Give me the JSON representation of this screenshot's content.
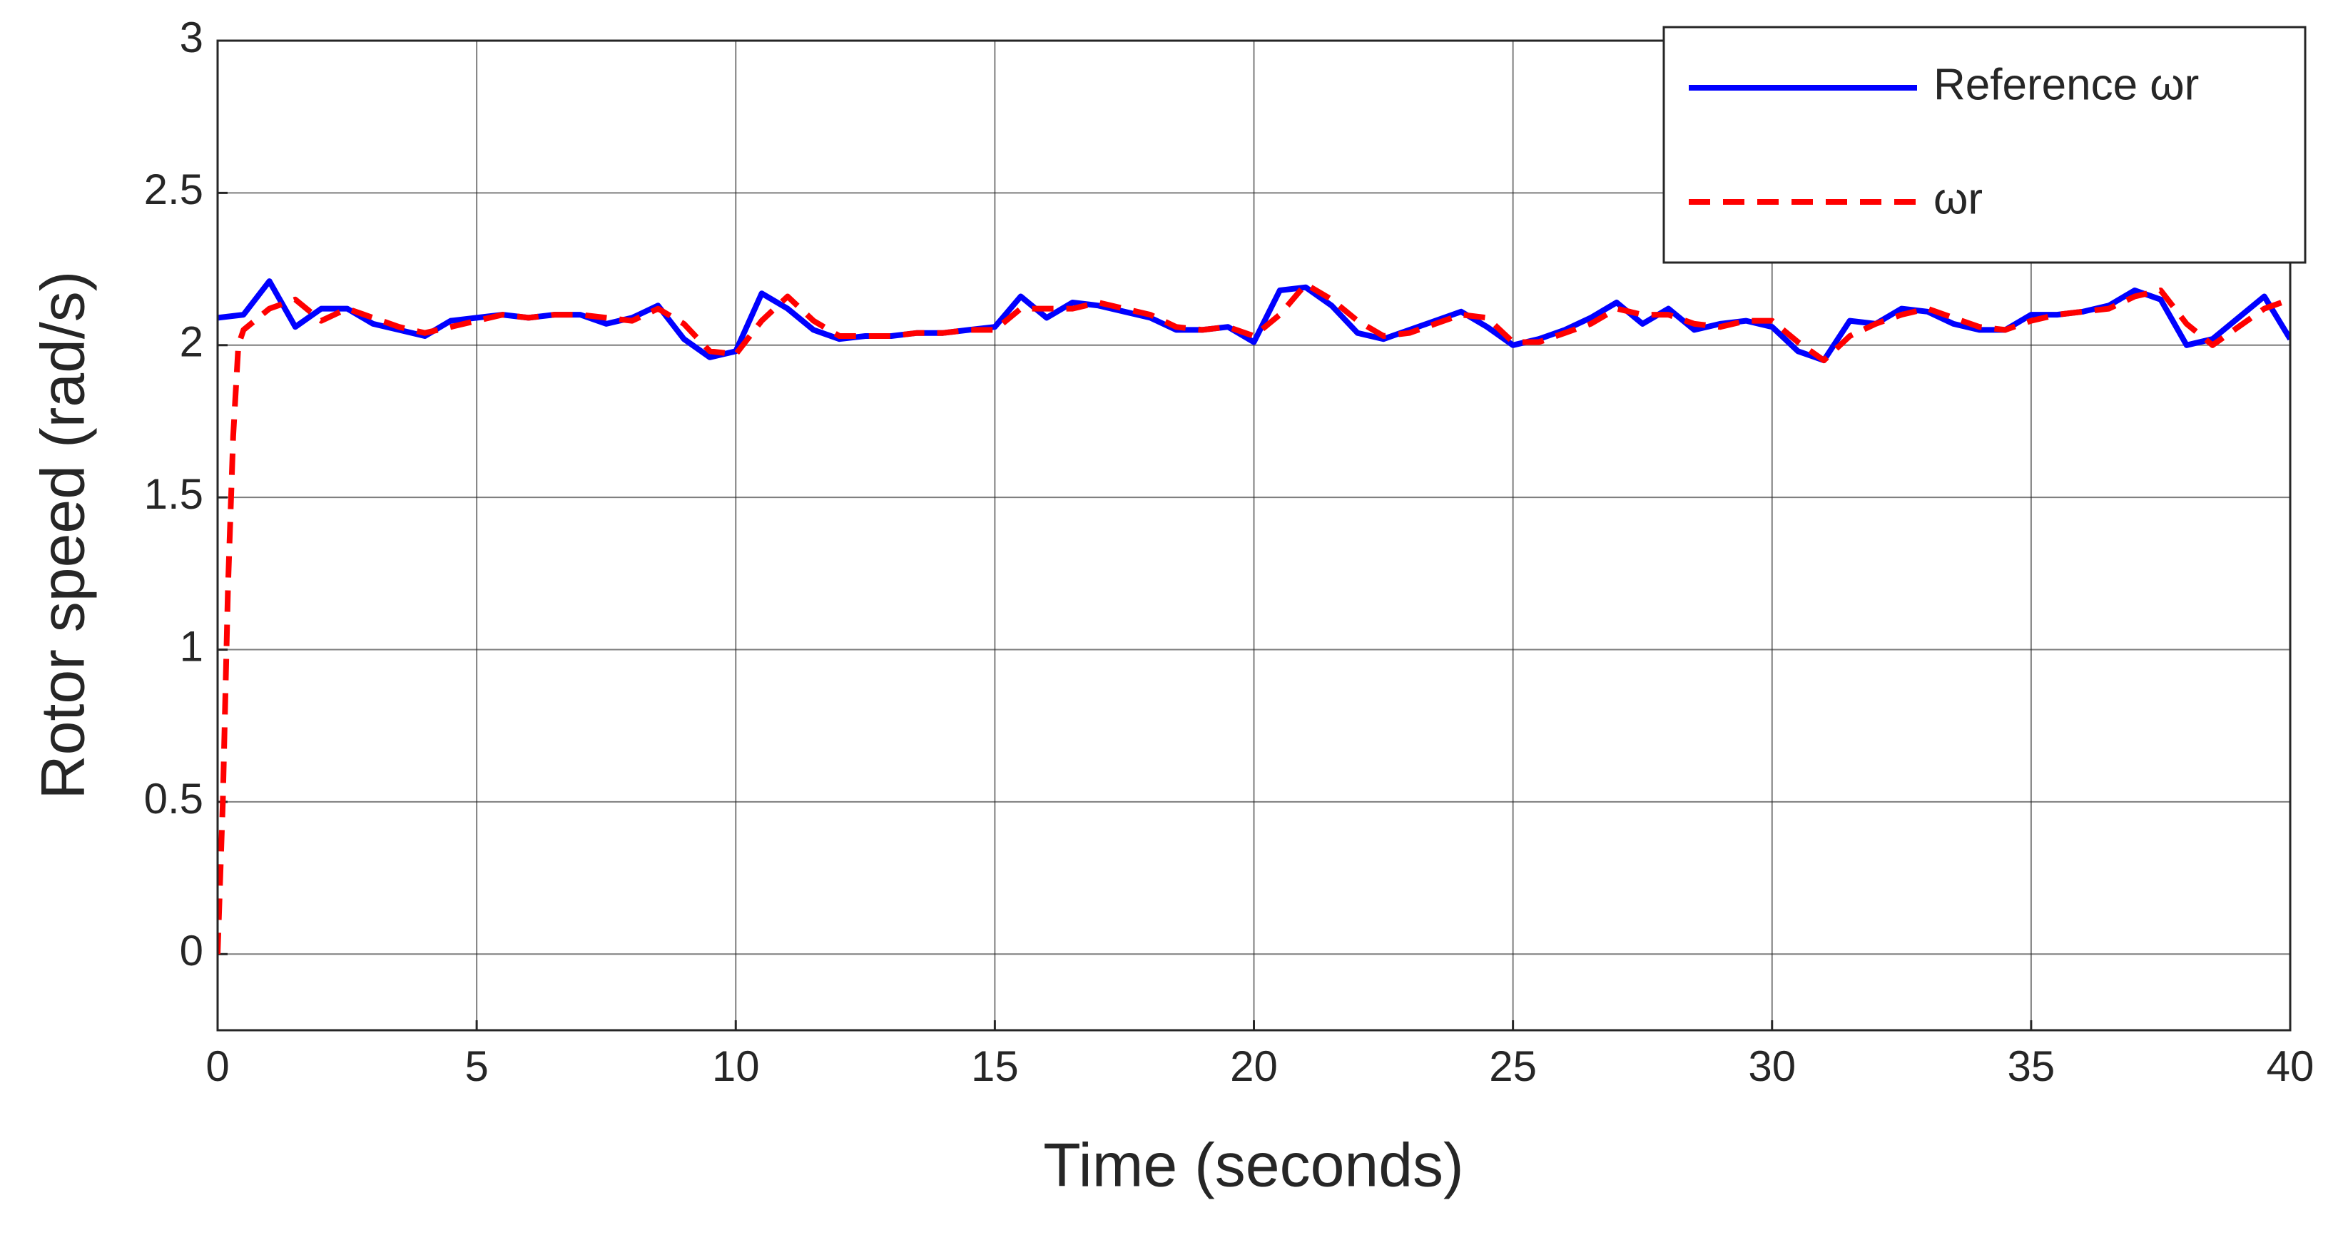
{
  "chart_data": {
    "type": "line",
    "xlabel": "Time (seconds)",
    "ylabel": "Rotor speed (rad/s)",
    "xlim": [
      0,
      40
    ],
    "ylim": [
      -0.25,
      3
    ],
    "xticks": [
      0,
      5,
      10,
      15,
      20,
      25,
      30,
      35,
      40
    ],
    "yticks": [
      0,
      0.5,
      1,
      1.5,
      2,
      2.5,
      3
    ],
    "grid": true,
    "legend": "upper right",
    "series": [
      {
        "name": "Reference ωr",
        "color": "#0000ff",
        "style": "solid",
        "x": [
          0,
          0.5,
          1,
          1.5,
          2,
          2.5,
          3,
          3.5,
          4,
          4.5,
          5,
          5.5,
          6,
          6.5,
          7,
          7.5,
          8,
          8.5,
          9,
          9.5,
          10,
          10.5,
          11,
          11.5,
          12,
          12.5,
          13,
          13.5,
          14,
          14.5,
          15,
          15.5,
          16,
          16.5,
          17,
          17.5,
          18,
          18.5,
          19,
          19.5,
          20,
          20.5,
          21,
          21.5,
          22,
          22.5,
          23,
          23.5,
          24,
          24.5,
          25,
          25.5,
          26,
          26.5,
          27,
          27.5,
          28,
          28.5,
          29,
          29.5,
          30,
          30.5,
          31,
          31.5,
          32,
          32.5,
          33,
          33.5,
          34,
          34.5,
          35,
          35.5,
          36,
          36.5,
          37,
          37.5,
          38,
          38.5,
          39,
          39.5,
          40
        ],
        "values": [
          2.09,
          2.1,
          2.21,
          2.06,
          2.12,
          2.12,
          2.07,
          2.05,
          2.03,
          2.08,
          2.09,
          2.1,
          2.09,
          2.1,
          2.1,
          2.07,
          2.09,
          2.13,
          2.02,
          1.96,
          1.98,
          2.17,
          2.12,
          2.05,
          2.02,
          2.03,
          2.03,
          2.04,
          2.04,
          2.05,
          2.06,
          2.16,
          2.09,
          2.14,
          2.13,
          2.11,
          2.09,
          2.05,
          2.05,
          2.06,
          2.01,
          2.18,
          2.19,
          2.13,
          2.04,
          2.02,
          2.05,
          2.08,
          2.11,
          2.06,
          2.0,
          2.02,
          2.05,
          2.09,
          2.14,
          2.07,
          2.12,
          2.05,
          2.07,
          2.08,
          2.06,
          1.98,
          1.95,
          2.08,
          2.07,
          2.12,
          2.11,
          2.07,
          2.05,
          2.05,
          2.1,
          2.1,
          2.11,
          2.13,
          2.18,
          2.15,
          2.0,
          2.02,
          2.09,
          2.16,
          2.02
        ]
      },
      {
        "name": "ωr",
        "color": "#ff0000",
        "style": "dashed",
        "x": [
          0,
          0.1,
          0.2,
          0.3,
          0.4,
          0.5,
          1,
          1.5,
          2,
          2.5,
          3,
          3.5,
          4,
          4.5,
          5,
          5.5,
          6,
          6.5,
          7,
          7.5,
          8,
          8.5,
          9,
          9.5,
          10,
          10.5,
          11,
          11.5,
          12,
          12.5,
          13,
          13.5,
          14,
          14.5,
          15,
          15.5,
          16,
          16.5,
          17,
          17.5,
          18,
          18.5,
          19,
          19.5,
          20,
          20.5,
          21,
          21.5,
          22,
          22.5,
          23,
          23.5,
          24,
          24.5,
          25,
          25.5,
          26,
          26.5,
          27,
          27.5,
          28,
          28.5,
          29,
          29.5,
          30,
          30.5,
          31,
          31.5,
          32,
          32.5,
          33,
          33.5,
          34,
          34.5,
          35,
          35.5,
          36,
          36.5,
          37,
          37.5,
          38,
          38.5,
          39,
          39.5,
          40
        ],
        "values": [
          0,
          0.5,
          1.2,
          1.7,
          2.0,
          2.05,
          2.12,
          2.15,
          2.08,
          2.12,
          2.09,
          2.06,
          2.04,
          2.06,
          2.08,
          2.1,
          2.09,
          2.1,
          2.1,
          2.09,
          2.08,
          2.12,
          2.07,
          1.98,
          1.97,
          2.08,
          2.16,
          2.08,
          2.03,
          2.03,
          2.03,
          2.04,
          2.04,
          2.05,
          2.05,
          2.12,
          2.12,
          2.12,
          2.14,
          2.12,
          2.1,
          2.06,
          2.05,
          2.06,
          2.03,
          2.1,
          2.2,
          2.15,
          2.08,
          2.03,
          2.04,
          2.07,
          2.1,
          2.09,
          2.01,
          2.01,
          2.04,
          2.07,
          2.12,
          2.1,
          2.1,
          2.07,
          2.06,
          2.08,
          2.08,
          2.01,
          1.95,
          2.03,
          2.07,
          2.1,
          2.12,
          2.09,
          2.06,
          2.05,
          2.08,
          2.1,
          2.11,
          2.12,
          2.16,
          2.18,
          2.07,
          2.0,
          2.06,
          2.12,
          2.15
        ]
      }
    ]
  }
}
